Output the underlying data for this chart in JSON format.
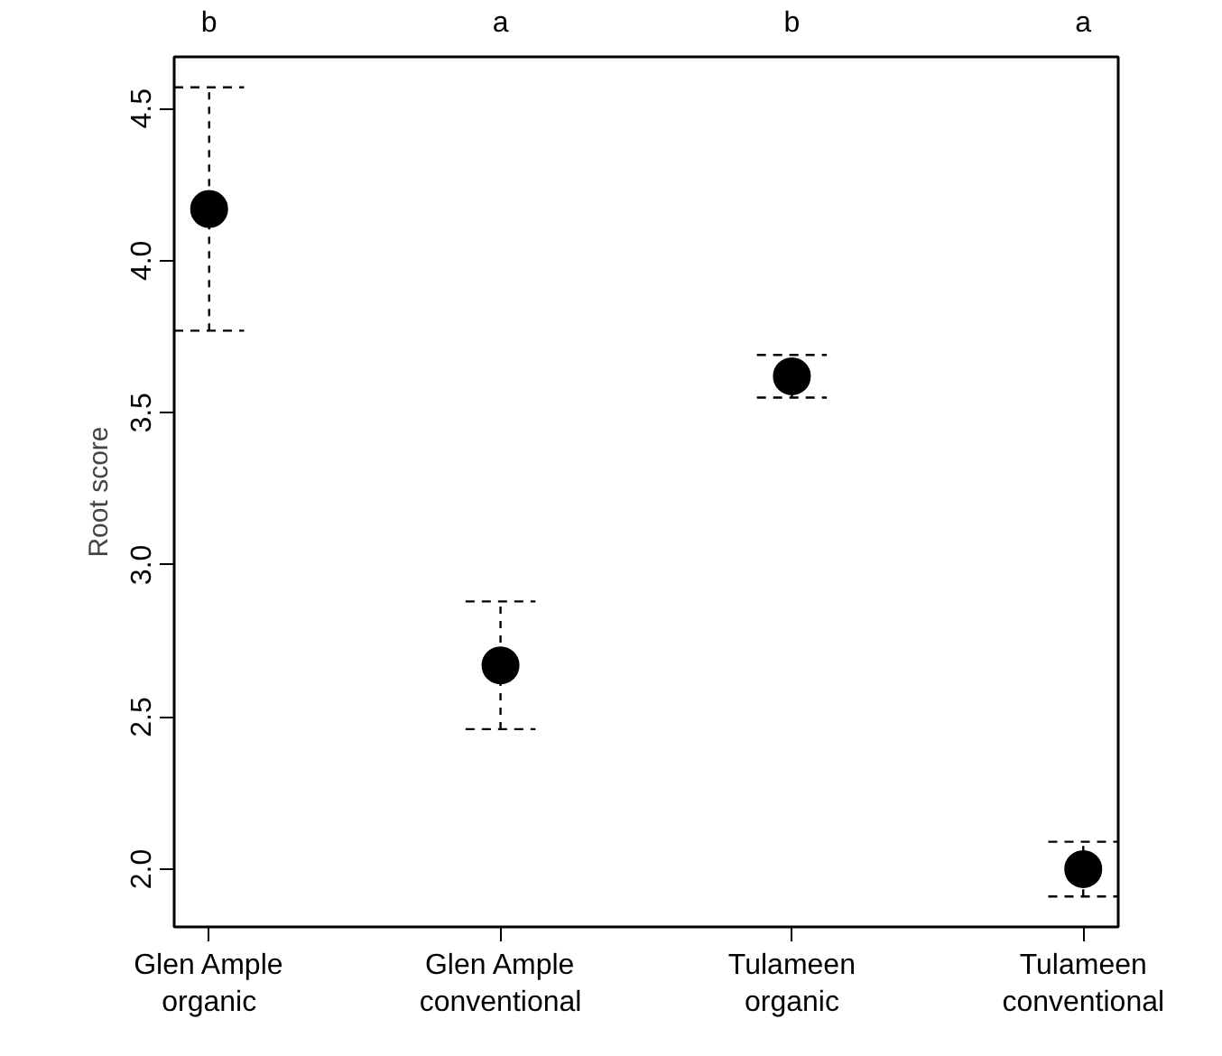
{
  "chart_data": {
    "type": "scatter",
    "categories": [
      "Glen Ample\norganic",
      "Glen Ample\nconventional",
      "Tulameen\norganic",
      "Tulameen\nconventional"
    ],
    "series": [
      {
        "color": "#000000",
        "values": [
          4.17,
          2.67,
          3.62,
          2.0
        ],
        "errors": [
          [
            3.77,
            4.57
          ],
          [
            2.46,
            2.88
          ],
          [
            3.55,
            3.69
          ],
          [
            1.91,
            2.09
          ]
        ]
      }
    ],
    "ylabel": "Root score",
    "ylim": [
      1.81,
      4.67
    ],
    "yticks": [
      {
        "value": 2,
        "label": "2.0"
      },
      2.5,
      {
        "value": 3,
        "label": "3.0"
      },
      3.5,
      {
        "value": 4,
        "label": "4.0"
      },
      4.5
    ],
    "annotations": [
      "b",
      "a",
      "b",
      "a"
    ],
    "grid": false,
    "marker": "circle"
  }
}
